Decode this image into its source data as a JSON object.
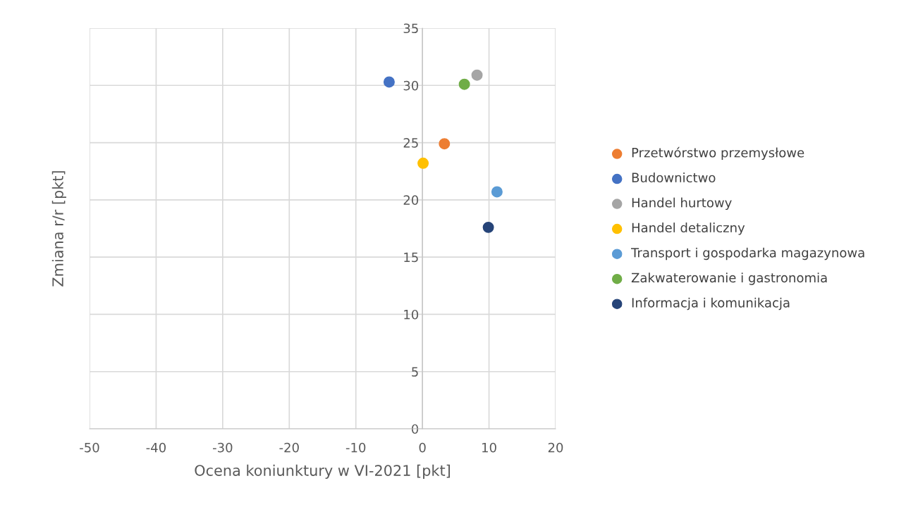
{
  "chart_data": {
    "type": "scatter",
    "xlabel": "Ocena koniunktury w VI-2021 [pkt]",
    "ylabel": "Zmiana r/r [pkt]",
    "xlim": [
      -50,
      20
    ],
    "xticks": [
      -50,
      -40,
      -30,
      -20,
      -10,
      0,
      10,
      20
    ],
    "ylim": [
      0,
      35
    ],
    "yticks": [
      0,
      5,
      10,
      15,
      20,
      25,
      30,
      35
    ],
    "grid": true,
    "legend": "right",
    "marker": "circle",
    "series": [
      {
        "name": "Przetwórstwo przemysłowe",
        "color": "#ed7d31",
        "x": [
          3.3
        ],
        "values": [
          24.9
        ]
      },
      {
        "name": "Budownictwo",
        "color": "#4472c4",
        "x": [
          -5.0
        ],
        "values": [
          30.3
        ]
      },
      {
        "name": "Handel hurtowy",
        "color": "#a5a5a5",
        "x": [
          8.2
        ],
        "values": [
          30.9
        ]
      },
      {
        "name": "Handel detaliczny",
        "color": "#ffc000",
        "x": [
          0.1
        ],
        "values": [
          23.2
        ]
      },
      {
        "name": "Transport i gospodarka magazynowa",
        "color": "#5b9bd5",
        "x": [
          11.2
        ],
        "values": [
          20.7
        ]
      },
      {
        "name": "Zakwaterowanie i gastronomia",
        "color": "#70ad47",
        "x": [
          6.3
        ],
        "values": [
          30.1
        ]
      },
      {
        "name": "Informacja i komunikacja",
        "color": "#264478",
        "x": [
          9.9
        ],
        "values": [
          17.6
        ]
      }
    ]
  }
}
